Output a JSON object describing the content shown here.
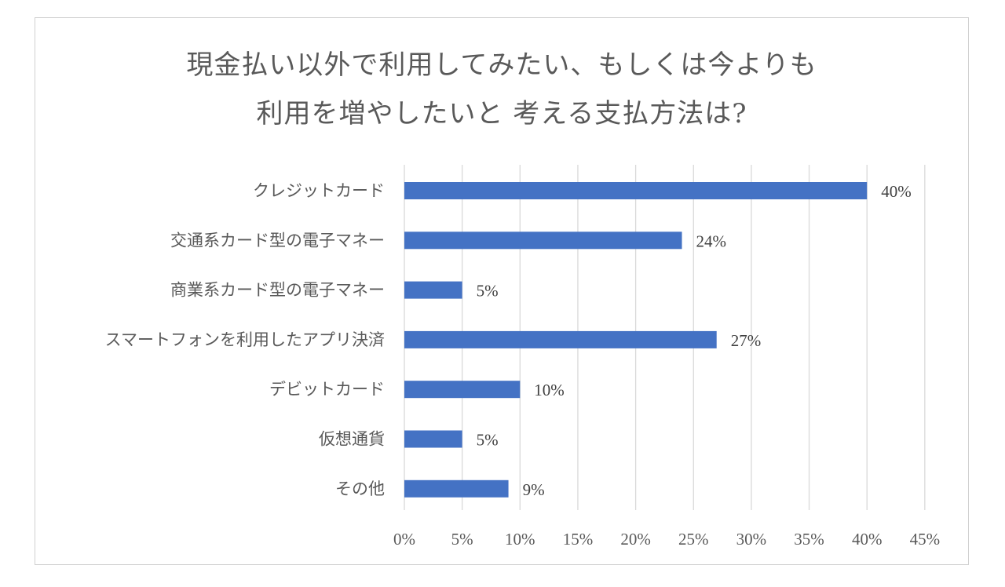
{
  "chart_data": {
    "type": "bar",
    "orientation": "horizontal",
    "title_lines": [
      "現金払い以外で利用してみたい、もしくは今よりも",
      "利用を増やしたいと 考える支払方法は?"
    ],
    "categories": [
      "クレジットカード",
      "交通系カード型の電子マネー",
      "商業系カード型の電子マネー",
      "スマートフォンを利用したアプリ決済",
      "デビットカード",
      "仮想通貨",
      "その他"
    ],
    "values": [
      40,
      24,
      5,
      27,
      10,
      5,
      9
    ],
    "data_labels": [
      "40%",
      "24%",
      "5%",
      "27%",
      "10%",
      "5%",
      "9%"
    ],
    "x_ticks": [
      0,
      5,
      10,
      15,
      20,
      25,
      30,
      35,
      40,
      45
    ],
    "x_tick_labels": [
      "0%",
      "5%",
      "10%",
      "15%",
      "20%",
      "25%",
      "30%",
      "35%",
      "40%",
      "45%"
    ],
    "xlim": [
      0,
      45
    ],
    "grid": true,
    "legend": "none",
    "bar_color": "#4472c4",
    "grid_color": "#d9d9d9"
  }
}
